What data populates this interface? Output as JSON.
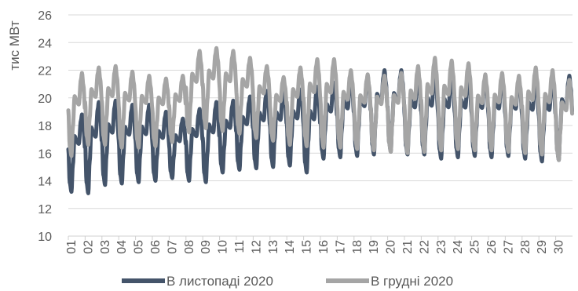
{
  "chart_data": {
    "type": "line",
    "title": "",
    "xlabel": "",
    "ylabel": "тис МВт",
    "ylim": [
      10,
      26
    ],
    "yticks": [
      10,
      12,
      14,
      16,
      18,
      20,
      22,
      24,
      26
    ],
    "grid": true,
    "legend_position": "bottom",
    "categories": [
      "01",
      "02",
      "03",
      "04",
      "05",
      "06",
      "07",
      "08",
      "09",
      "10",
      "11",
      "12",
      "13",
      "14",
      "15",
      "16",
      "17",
      "18",
      "19",
      "20",
      "21",
      "22",
      "23",
      "24",
      "25",
      "26",
      "27",
      "28",
      "29",
      "30"
    ],
    "series": [
      {
        "name": "В листопаді 2020",
        "color": "#44546a",
        "daily_min": [
          13.2,
          13.1,
          13.7,
          13.8,
          13.9,
          14.0,
          14.2,
          14.0,
          13.9,
          14.6,
          14.8,
          14.9,
          15.0,
          15.1,
          14.6,
          15.6,
          15.7,
          15.8,
          15.9,
          16.1,
          15.9,
          15.9,
          15.6,
          15.7,
          15.8,
          15.7,
          15.8,
          15.6,
          15.4,
          15.5
        ],
        "daily_max": [
          18.8,
          19.7,
          19.8,
          19.5,
          19.5,
          19.0,
          18.5,
          19.2,
          19.7,
          19.8,
          20.1,
          20.5,
          20.5,
          20.6,
          20.8,
          21.1,
          21.4,
          21.6,
          22.0,
          22.0,
          21.4,
          21.6,
          21.6,
          21.5,
          21.4,
          21.4,
          21.3,
          21.3,
          21.4,
          21.6
        ]
      },
      {
        "name": "В грудні 2020",
        "color": "#a5a5a5",
        "daily_min": [
          15.8,
          16.6,
          16.6,
          16.4,
          16.4,
          16.5,
          16.8,
          17.5,
          17.8,
          17.6,
          17.4,
          17.1,
          16.9,
          16.6,
          16.5,
          16.4,
          16.4,
          16.3,
          16.2,
          16.1,
          16.0,
          16.1,
          16.2,
          16.3,
          16.2,
          16.2,
          16.1,
          16.0,
          15.9,
          15.5
        ],
        "daily_max": [
          21.8,
          22.2,
          22.3,
          21.9,
          21.6,
          21.4,
          21.6,
          23.4,
          23.6,
          23.4,
          22.9,
          22.3,
          21.5,
          22.2,
          22.8,
          22.8,
          22.0,
          21.7,
          21.6,
          21.8,
          22.3,
          22.9,
          22.7,
          22.5,
          21.7,
          21.8,
          21.6,
          22.2,
          22.0,
          21.3
        ]
      }
    ]
  }
}
